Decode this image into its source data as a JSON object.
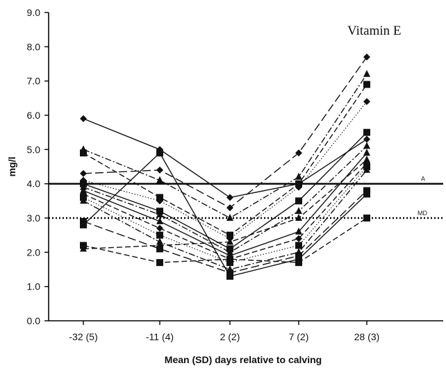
{
  "chart_data": {
    "type": "line",
    "title": "Vitamin E",
    "xlabel": "Mean (SD) days relative to calving",
    "ylabel": "mg/l",
    "categories": [
      "-32 (5)",
      "-11 (4)",
      "2 (2)",
      "7 (2)",
      "28 (3)"
    ],
    "ylim": [
      0,
      9
    ],
    "yticks": [
      "0.0",
      "1.0",
      "2.0",
      "3.0",
      "4.0",
      "5.0",
      "6.0",
      "7.0",
      "8.0",
      "9.0"
    ],
    "grid": false,
    "legend": "none",
    "reference_lines": [
      {
        "label": "A",
        "value": 4.0,
        "style": "solid"
      },
      {
        "label": "MD",
        "value": 3.0,
        "style": "dotted"
      }
    ],
    "series": [
      {
        "values": [
          5.9,
          5.0,
          3.6,
          4.0,
          5.3
        ],
        "marker": "diamond",
        "dash": "solid"
      },
      {
        "values": [
          4.3,
          4.4,
          3.3,
          4.9,
          7.7
        ],
        "marker": "diamond",
        "dash": "long-dash"
      },
      {
        "values": [
          5.0,
          4.1,
          3.0,
          4.2,
          7.2
        ],
        "marker": "triangle",
        "dash": "dash-dot"
      },
      {
        "values": [
          4.9,
          3.6,
          2.5,
          4.0,
          6.9
        ],
        "marker": "square",
        "dash": "dash"
      },
      {
        "values": [
          4.1,
          3.5,
          2.4,
          3.9,
          6.4
        ],
        "marker": "diamond",
        "dash": "dotted"
      },
      {
        "values": [
          4.0,
          3.2,
          2.1,
          3.5,
          5.5
        ],
        "marker": "square",
        "dash": "solid"
      },
      {
        "values": [
          3.9,
          3.1,
          2.0,
          3.2,
          5.1
        ],
        "marker": "triangle",
        "dash": "dash-dot"
      },
      {
        "values": [
          3.8,
          2.9,
          1.9,
          2.6,
          4.9
        ],
        "marker": "triangle",
        "dash": "solid"
      },
      {
        "values": [
          3.7,
          2.7,
          1.8,
          2.4,
          4.6
        ],
        "marker": "diamond",
        "dash": "dash"
      },
      {
        "values": [
          3.6,
          2.5,
          1.7,
          2.2,
          4.5
        ],
        "marker": "square",
        "dash": "dotted"
      },
      {
        "values": [
          3.5,
          2.3,
          1.5,
          2.0,
          4.4
        ],
        "marker": "triangle",
        "dash": "dash-dot"
      },
      {
        "values": [
          2.9,
          2.1,
          1.4,
          1.9,
          3.8
        ],
        "marker": "square",
        "dash": "long-dash"
      },
      {
        "values": [
          2.8,
          4.9,
          1.3,
          1.8,
          3.7
        ],
        "marker": "square",
        "dash": "solid"
      },
      {
        "values": [
          2.2,
          1.7,
          1.8,
          1.7,
          3.0
        ],
        "marker": "square",
        "dash": "dash"
      },
      {
        "values": [
          2.1,
          2.2,
          2.3,
          3.0,
          4.7
        ],
        "marker": "triangle",
        "dash": "dash"
      }
    ]
  }
}
